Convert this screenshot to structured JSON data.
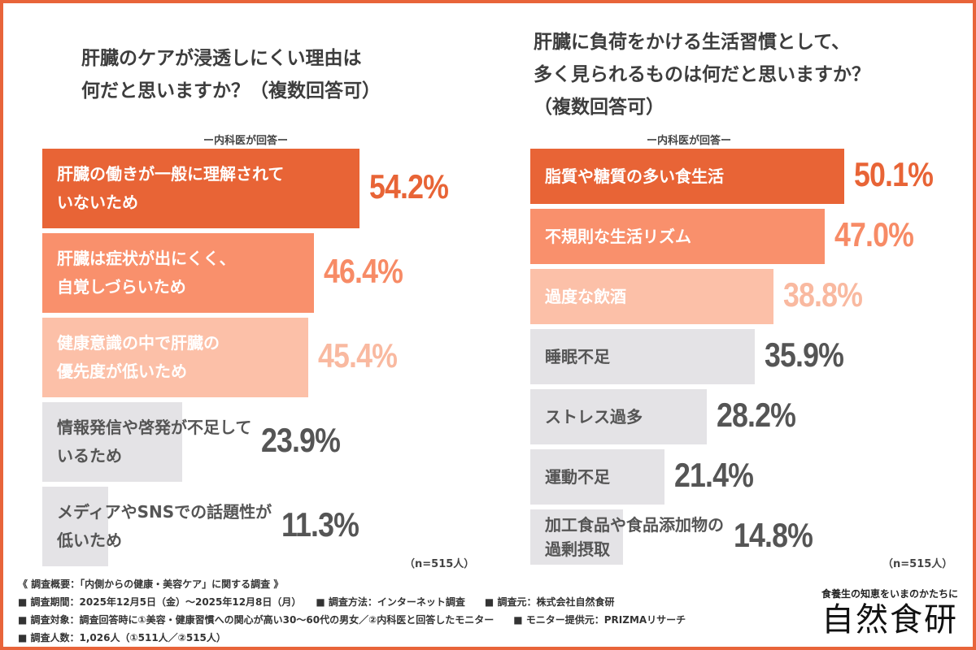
{
  "colors": {
    "frame": "#e8643a",
    "bar1": "#e86436",
    "bar2": "#f9906c",
    "bar3": "#fcc0a8",
    "gray": "#e4e3e6",
    "pct1": "#e86436",
    "pct2": "#f78b66",
    "pct3": "#f9b9a0",
    "pctGray": "#555555"
  },
  "chart_data": [
    {
      "type": "bar",
      "orientation": "horizontal",
      "title": "肝臓のケアが浸透しにくい理由は\n何だと思いますか？（複数回答可）",
      "subtitle": "ー内科医が回答ー",
      "note": "（n=515人）",
      "categories": [
        "肝臓の働きが一般に理解されて\nいないため",
        "肝臓は症状が出にくく、\n自覚しづらいため",
        "健康意識の中で肝臓の\n優先度が低いため",
        "情報発信や啓発が不足して\nいるため",
        "メディアやSNSでの話題性が\n低いため"
      ],
      "values": [
        54.2,
        46.4,
        45.4,
        23.9,
        11.3
      ],
      "labels": [
        "54.2%",
        "46.4%",
        "45.4%",
        "23.9%",
        "11.3%"
      ]
    },
    {
      "type": "bar",
      "orientation": "horizontal",
      "title": "肝臓に負荷をかける生活習慣として、\n多く見られるものは何だと思いますか？\n（複数回答可）",
      "subtitle": "ー内科医が回答ー",
      "note": "（n=515人）",
      "categories": [
        "脂質や糖質の多い食生活",
        "不規則な生活リズム",
        "過度な飲酒",
        "睡眠不足",
        "ストレス過多",
        "運動不足",
        "加工食品や食品添加物の\n過剰摂取"
      ],
      "values": [
        50.1,
        47.0,
        38.8,
        35.9,
        28.2,
        21.4,
        14.8
      ],
      "labels": [
        "50.1%",
        "47.0%",
        "38.8%",
        "35.9%",
        "28.2%",
        "21.4%",
        "14.8%"
      ]
    }
  ],
  "notes": [
    "《 調査概要：「内側からの健康・美容ケア」に関する調査 》",
    "■ 調査期間：2025年12月5日（金）～2025年12月8日（月）　　■ 調査方法：インターネット調査　　■ 調査元：株式会社自然食研",
    "■ 調査対象：調査回答時に①美容・健康習慣への関心が高い30～60代の男女／②内科医と回答したモニター　　■ モニター提供元：PRIZMAリサーチ",
    "■ 調査人数：1,026人（①511人／②515人）"
  ],
  "logo": {
    "tagline": "食養生の知恵をいまのかたちに",
    "name": "自然食研"
  }
}
